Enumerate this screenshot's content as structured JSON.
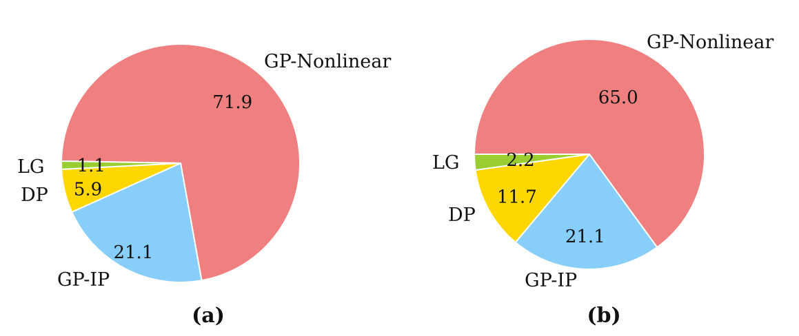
{
  "chart_data": [
    {
      "type": "pie",
      "panel_label": "(a)",
      "series": [
        {
          "name": "",
          "slices": [
            {
              "label": "GP-Nonlinear",
              "value": 71.9,
              "value_text": "71.9",
              "color": "#F08080"
            },
            {
              "label": "GP-IP",
              "value": 21.1,
              "value_text": "21.1",
              "color": "#87CEFA"
            },
            {
              "label": "DP",
              "value": 5.9,
              "value_text": "5.9",
              "color": "#FFD700"
            },
            {
              "label": "LG",
              "value": 1.1,
              "value_text": "1.1",
              "color": "#9ACD32"
            }
          ]
        }
      ],
      "start_angle_deg": 179,
      "direction": "clockwise",
      "legend": "none"
    },
    {
      "type": "pie",
      "panel_label": "(b)",
      "series": [
        {
          "name": "",
          "slices": [
            {
              "label": "GP-Nonlinear",
              "value": 65.0,
              "value_text": "65.0",
              "color": "#F08080"
            },
            {
              "label": "GP-IP",
              "value": 21.1,
              "value_text": "21.1",
              "color": "#87CEFA"
            },
            {
              "label": "DP",
              "value": 11.7,
              "value_text": "11.7",
              "color": "#FFD700"
            },
            {
              "label": "LG",
              "value": 2.2,
              "value_text": "2.2",
              "color": "#9ACD32"
            }
          ]
        }
      ],
      "start_angle_deg": 180,
      "direction": "clockwise",
      "legend": "none"
    }
  ]
}
